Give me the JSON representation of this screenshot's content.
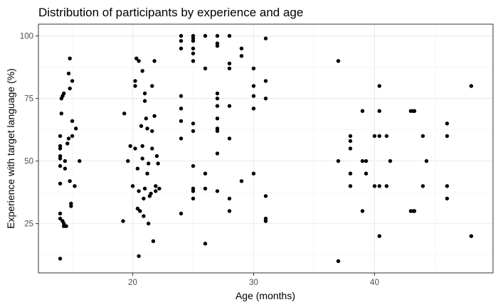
{
  "chart_data": {
    "type": "scatter",
    "title": "Distribution of participants by experience and age",
    "xlabel": "Age (months)",
    "ylabel": "Experience with target language (%)",
    "xlim": [
      12.2,
      49.8
    ],
    "ylim": [
      5.3,
      104.7
    ],
    "x_ticks": [
      20,
      30,
      40
    ],
    "y_ticks": [
      25,
      50,
      75,
      100
    ],
    "x_tick_labels": [
      "20",
      "30",
      "40"
    ],
    "y_tick_labels": [
      "25",
      "50",
      "75",
      "100"
    ],
    "grid": true,
    "point_color": "#000000",
    "points": [
      [
        14.0,
        29
      ],
      [
        14.0,
        27
      ],
      [
        14.0,
        11
      ],
      [
        14.0,
        41
      ],
      [
        14.0,
        48
      ],
      [
        14.0,
        51
      ],
      [
        14.0,
        52
      ],
      [
        14.0,
        55
      ],
      [
        14.0,
        56
      ],
      [
        14.0,
        60
      ],
      [
        14.1,
        69
      ],
      [
        14.1,
        75
      ],
      [
        14.2,
        76
      ],
      [
        14.2,
        26
      ],
      [
        14.3,
        25
      ],
      [
        14.3,
        24
      ],
      [
        14.3,
        77
      ],
      [
        14.4,
        47
      ],
      [
        14.4,
        50
      ],
      [
        14.5,
        24
      ],
      [
        14.6,
        57
      ],
      [
        14.7,
        59
      ],
      [
        14.7,
        85
      ],
      [
        14.8,
        91
      ],
      [
        14.8,
        79
      ],
      [
        14.8,
        42
      ],
      [
        14.9,
        32
      ],
      [
        14.9,
        33
      ],
      [
        15.0,
        66
      ],
      [
        15.0,
        60
      ],
      [
        15.0,
        82
      ],
      [
        15.2,
        40
      ],
      [
        15.3,
        63
      ],
      [
        15.6,
        50
      ],
      [
        19.2,
        26
      ],
      [
        19.3,
        69
      ],
      [
        19.6,
        50
      ],
      [
        19.8,
        56
      ],
      [
        20.0,
        40
      ],
      [
        20.2,
        55
      ],
      [
        20.2,
        82
      ],
      [
        20.2,
        80
      ],
      [
        20.3,
        91
      ],
      [
        20.4,
        47
      ],
      [
        20.4,
        31
      ],
      [
        20.5,
        38
      ],
      [
        20.5,
        90
      ],
      [
        20.5,
        12
      ],
      [
        20.6,
        30
      ],
      [
        20.7,
        64
      ],
      [
        20.8,
        86
      ],
      [
        20.8,
        56
      ],
      [
        20.8,
        51
      ],
      [
        20.9,
        28
      ],
      [
        20.9,
        35
      ],
      [
        21.0,
        39
      ],
      [
        21.0,
        77
      ],
      [
        21.0,
        74
      ],
      [
        21.1,
        67
      ],
      [
        21.2,
        63
      ],
      [
        21.2,
        45
      ],
      [
        21.3,
        25
      ],
      [
        21.3,
        49
      ],
      [
        21.4,
        36
      ],
      [
        21.5,
        37
      ],
      [
        21.6,
        80
      ],
      [
        21.6,
        62
      ],
      [
        21.6,
        55
      ],
      [
        21.7,
        18
      ],
      [
        21.8,
        90
      ],
      [
        21.8,
        68
      ],
      [
        21.9,
        38
      ],
      [
        21.9,
        40
      ],
      [
        22.0,
        52
      ],
      [
        22.1,
        49
      ],
      [
        22.2,
        39
      ],
      [
        24.0,
        29
      ],
      [
        24.0,
        59
      ],
      [
        24.0,
        66
      ],
      [
        24.0,
        71
      ],
      [
        24.0,
        76
      ],
      [
        24.0,
        95
      ],
      [
        24.0,
        98
      ],
      [
        24.0,
        100
      ],
      [
        25.0,
        35
      ],
      [
        25.0,
        38
      ],
      [
        25.0,
        39
      ],
      [
        25.0,
        48
      ],
      [
        25.0,
        62
      ],
      [
        25.0,
        65
      ],
      [
        25.0,
        90
      ],
      [
        25.0,
        93
      ],
      [
        25.0,
        95
      ],
      [
        25.0,
        98
      ],
      [
        25.0,
        99
      ],
      [
        25.0,
        100
      ],
      [
        26.0,
        17
      ],
      [
        26.0,
        39
      ],
      [
        26.0,
        45
      ],
      [
        26.0,
        87
      ],
      [
        26.0,
        100
      ],
      [
        27.0,
        38
      ],
      [
        27.0,
        53
      ],
      [
        27.0,
        62
      ],
      [
        27.0,
        63
      ],
      [
        27.0,
        67
      ],
      [
        27.0,
        72
      ],
      [
        27.0,
        75
      ],
      [
        27.0,
        77
      ],
      [
        27.0,
        96
      ],
      [
        27.0,
        97
      ],
      [
        27.0,
        100
      ],
      [
        28.0,
        30
      ],
      [
        28.0,
        35
      ],
      [
        28.0,
        59
      ],
      [
        28.0,
        72
      ],
      [
        28.0,
        87
      ],
      [
        28.0,
        89
      ],
      [
        28.0,
        100
      ],
      [
        29.0,
        42
      ],
      [
        29.0,
        92
      ],
      [
        29.0,
        95
      ],
      [
        30.0,
        45
      ],
      [
        30.0,
        71
      ],
      [
        30.0,
        76
      ],
      [
        30.0,
        80
      ],
      [
        30.0,
        87
      ],
      [
        31.0,
        26
      ],
      [
        31.0,
        27
      ],
      [
        31.0,
        36
      ],
      [
        31.0,
        75
      ],
      [
        31.0,
        82
      ],
      [
        31.0,
        99
      ],
      [
        37.0,
        10
      ],
      [
        37.0,
        50
      ],
      [
        37.0,
        90
      ],
      [
        38.0,
        40
      ],
      [
        38.0,
        45
      ],
      [
        38.0,
        55
      ],
      [
        38.0,
        58
      ],
      [
        38.0,
        60
      ],
      [
        39.0,
        30
      ],
      [
        39.0,
        50
      ],
      [
        39.0,
        70
      ],
      [
        39.3,
        45
      ],
      [
        39.3,
        50
      ],
      [
        40.0,
        40
      ],
      [
        40.0,
        60
      ],
      [
        40.4,
        20
      ],
      [
        40.4,
        40
      ],
      [
        40.4,
        60
      ],
      [
        40.4,
        70
      ],
      [
        40.4,
        80
      ],
      [
        41.0,
        40
      ],
      [
        41.0,
        60
      ],
      [
        41.3,
        50
      ],
      [
        43.0,
        30
      ],
      [
        43.0,
        70
      ],
      [
        43.2,
        30
      ],
      [
        43.2,
        70
      ],
      [
        43.3,
        30
      ],
      [
        43.3,
        70
      ],
      [
        44.0,
        40
      ],
      [
        44.0,
        60
      ],
      [
        44.3,
        50
      ],
      [
        46.0,
        35
      ],
      [
        46.0,
        40
      ],
      [
        46.0,
        60
      ],
      [
        46.0,
        65
      ],
      [
        48.0,
        20
      ],
      [
        48.0,
        80
      ]
    ]
  }
}
